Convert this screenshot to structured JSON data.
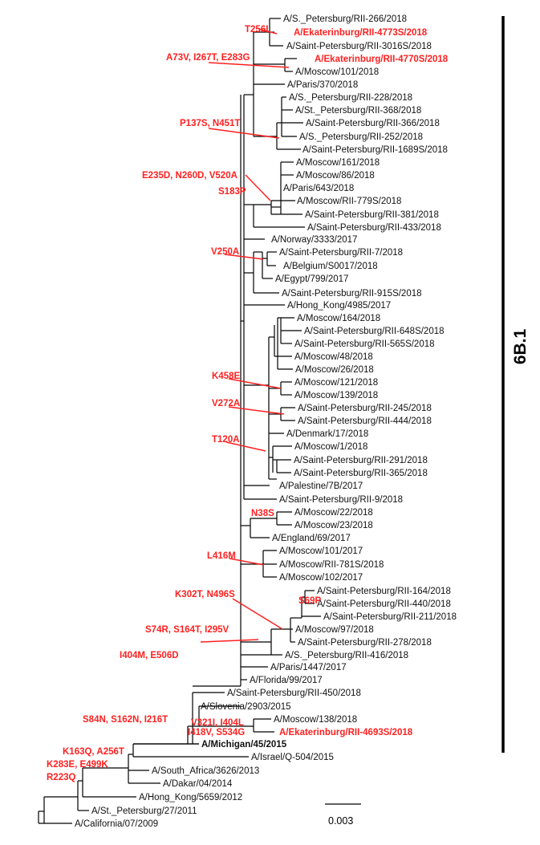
{
  "taxa": [
    {
      "id": "t1",
      "label": "A/S._Petersburg/RII-266/2018",
      "style": "normal"
    },
    {
      "id": "t2",
      "label": "A/Ekaterinburg/RII-4773S/2018",
      "style": "red"
    },
    {
      "id": "t3",
      "label": "A/Saint-Petersburg/RII-3016S/2018",
      "style": "normal"
    },
    {
      "id": "t4",
      "label": "A/Ekaterinburg/RII-4770S/2018",
      "style": "red"
    },
    {
      "id": "t5",
      "label": "A/Moscow/101/2018",
      "style": "normal"
    },
    {
      "id": "t6",
      "label": "A/Paris/370/2018",
      "style": "normal"
    },
    {
      "id": "t7",
      "label": "A/S._Petersburg/RII-228/2018",
      "style": "normal"
    },
    {
      "id": "t8",
      "label": "A/St._Petersburg/RII-368/2018",
      "style": "normal"
    },
    {
      "id": "t9",
      "label": "A/Saint-Petersburg/RII-366/2018",
      "style": "normal"
    },
    {
      "id": "t10",
      "label": "A/S._Petersburg/RII-252/2018",
      "style": "normal"
    },
    {
      "id": "t11",
      "label": "A/Saint-Petersburg/RII-1689S/2018",
      "style": "normal"
    },
    {
      "id": "t12",
      "label": "A/Moscow/161/2018",
      "style": "normal"
    },
    {
      "id": "t13",
      "label": "A/Moscow/86/2018",
      "style": "normal"
    },
    {
      "id": "t14",
      "label": "A/Paris/643/2018",
      "style": "normal"
    },
    {
      "id": "t15",
      "label": "A/Moscow/RII-779S/2018",
      "style": "normal"
    },
    {
      "id": "t16",
      "label": "A/Saint-Petersburg/RII-381/2018",
      "style": "normal"
    },
    {
      "id": "t17",
      "label": "A/Saint-Petersburg/RII-433/2018",
      "style": "normal"
    },
    {
      "id": "t18",
      "label": "A/Norway/3333/2017",
      "style": "normal"
    },
    {
      "id": "t19",
      "label": "A/Saint-Petersburg/RII-7/2018",
      "style": "normal"
    },
    {
      "id": "t20",
      "label": "A/Belgium/S0017/2018",
      "style": "normal"
    },
    {
      "id": "t21",
      "label": "A/Egypt/799/2017",
      "style": "normal"
    },
    {
      "id": "t22",
      "label": "A/Saint-Petersburg/RII-915S/2018",
      "style": "normal"
    },
    {
      "id": "t23",
      "label": "A/Hong_Kong/4985/2017",
      "style": "normal"
    },
    {
      "id": "t24",
      "label": "A/Moscow/164/2018",
      "style": "normal"
    },
    {
      "id": "t25",
      "label": "A/Saint-Petersburg/RII-648S/2018",
      "style": "normal"
    },
    {
      "id": "t26",
      "label": "A/Saint-Petersburg/RII-565S/2018",
      "style": "normal"
    },
    {
      "id": "t27",
      "label": "A/Moscow/48/2018",
      "style": "normal"
    },
    {
      "id": "t28",
      "label": "A/Moscow/26/2018",
      "style": "normal"
    },
    {
      "id": "t29",
      "label": "A/Moscow/121/2018",
      "style": "normal"
    },
    {
      "id": "t30",
      "label": "A/Moscow/139/2018",
      "style": "normal"
    },
    {
      "id": "t31",
      "label": "A/Saint-Petersburg/RII-245/2018",
      "style": "normal"
    },
    {
      "id": "t32",
      "label": "A/Saint-Petersburg/RII-444/2018",
      "style": "normal"
    },
    {
      "id": "t33",
      "label": "A/Denmark/17/2018",
      "style": "normal"
    },
    {
      "id": "t34",
      "label": "A/Moscow/1/2018",
      "style": "normal"
    },
    {
      "id": "t35",
      "label": "A/Saint-Petersburg/RII-291/2018",
      "style": "normal"
    },
    {
      "id": "t36",
      "label": "A/Saint-Petersburg/RII-365/2018",
      "style": "normal"
    },
    {
      "id": "t37",
      "label": "A/Palestine/7B/2017",
      "style": "normal"
    },
    {
      "id": "t38",
      "label": "A/Saint-Petersburg/RII-9/2018",
      "style": "normal"
    },
    {
      "id": "t39",
      "label": "A/Moscow/22/2018",
      "style": "normal"
    },
    {
      "id": "t40",
      "label": "A/Moscow/23/2018",
      "style": "normal"
    },
    {
      "id": "t41",
      "label": "A/England/69/2017",
      "style": "normal"
    },
    {
      "id": "t42",
      "label": "A/Moscow/101/2017",
      "style": "normal"
    },
    {
      "id": "t43",
      "label": "A/Moscow/RII-781S/2018",
      "style": "normal"
    },
    {
      "id": "t44",
      "label": "A/Moscow/102/2017",
      "style": "normal"
    },
    {
      "id": "t45",
      "label": "A/Saint-Petersburg/RII-164/2018",
      "style": "normal"
    },
    {
      "id": "t46",
      "label": "A/Saint-Petersburg/RII-440/2018",
      "style": "normal"
    },
    {
      "id": "t47",
      "label": "A/Saint-Petersburg/RII-211/2018",
      "style": "normal"
    },
    {
      "id": "t48",
      "label": "A/Moscow/97/2018",
      "style": "normal"
    },
    {
      "id": "t49",
      "label": "A/Saint-Petersburg/RII-278/2018",
      "style": "normal"
    },
    {
      "id": "t50",
      "label": "A/S._Petersburg/RII-416/2018",
      "style": "normal"
    },
    {
      "id": "t51",
      "label": "A/Paris/1447/2017",
      "style": "normal"
    },
    {
      "id": "t52",
      "label": "A/Florida/99/2017",
      "style": "normal"
    },
    {
      "id": "t53",
      "label": "A/Saint-Petersburg/RII-450/2018",
      "style": "normal"
    },
    {
      "id": "t54",
      "label": "A/Slovenia/2903/2015",
      "style": "normal"
    },
    {
      "id": "t55",
      "label": "A/Moscow/138/2018",
      "style": "normal"
    },
    {
      "id": "t56",
      "label": "A/Ekaterinburg/RII-4693S/2018",
      "style": "red"
    },
    {
      "id": "t57",
      "label": "A/Michigan/45/2015",
      "style": "bold"
    },
    {
      "id": "t58",
      "label": "A/Israel/Q-504/2015",
      "style": "normal"
    },
    {
      "id": "t59",
      "label": "A/South_Africa/3626/2013",
      "style": "normal"
    },
    {
      "id": "t60",
      "label": "A/Dakar/04/2014",
      "style": "normal"
    },
    {
      "id": "t61",
      "label": "A/Hong_Kong/5659/2012",
      "style": "normal"
    },
    {
      "id": "t62",
      "label": "A/St._Petersburg/27/2011",
      "style": "normal"
    },
    {
      "id": "t63",
      "label": "A/California/07/2009",
      "style": "normal"
    }
  ],
  "mutations": [
    {
      "id": "m1",
      "label": "T256I"
    },
    {
      "id": "m2",
      "label": "A73V, I267T, E283G"
    },
    {
      "id": "m3",
      "label": "P137S, N451T"
    },
    {
      "id": "m4",
      "label": "E235D, N260D, V520A"
    },
    {
      "id": "m5",
      "label": "S183P"
    },
    {
      "id": "m6",
      "label": "V250A"
    },
    {
      "id": "m7",
      "label": "K458E"
    },
    {
      "id": "m8",
      "label": "V272A"
    },
    {
      "id": "m9",
      "label": "T120A"
    },
    {
      "id": "m10",
      "label": "N38S"
    },
    {
      "id": "m11",
      "label": "L416M"
    },
    {
      "id": "m12",
      "label": "K302T, N496S"
    },
    {
      "id": "m13",
      "label": "S69P"
    },
    {
      "id": "m14",
      "label": "S74R, S164T, I295V"
    },
    {
      "id": "m15",
      "label": "I404M, E506D"
    },
    {
      "id": "m16",
      "label": "S84N, S162N, I216T"
    },
    {
      "id": "m17",
      "label": "V321I, I404L"
    },
    {
      "id": "m18",
      "label": "I418V, S534G"
    },
    {
      "id": "m19",
      "label": "K163Q, A256T"
    },
    {
      "id": "m20",
      "label": "K283E, E499K"
    },
    {
      "id": "m21",
      "label": "R223Q"
    }
  ],
  "clade": {
    "label": "6B.1"
  },
  "scale_bar": {
    "label": "0.003",
    "value": 0.003
  },
  "colors": {
    "highlight": "#ff2020",
    "text": "#111111"
  }
}
